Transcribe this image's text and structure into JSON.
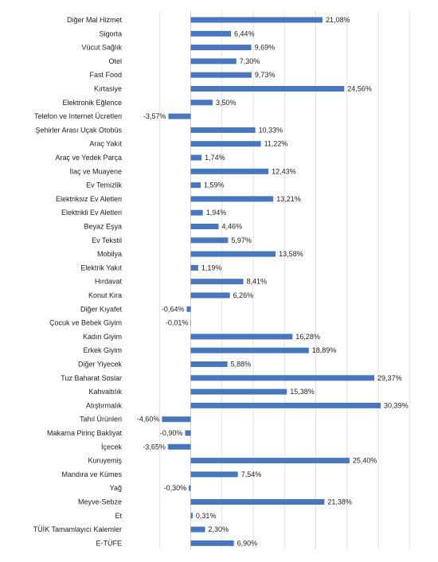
{
  "chart_data": {
    "type": "bar",
    "orientation": "horizontal",
    "title": "",
    "xlabel": "",
    "ylabel": "",
    "value_suffix": "%",
    "decimal_separator": ",",
    "grid": true,
    "bar_color": "#4a76bd",
    "xlim": [
      -5,
      35
    ],
    "categories": [
      "Diğer Mal Hizmet",
      "Sigorta",
      "Vücut Sağlık",
      "Otel",
      "Fast Food",
      "Kırtasiye",
      "Elektronik Eğlence",
      "Telefon ve Internet Ücretleri",
      "Şehirler Arası Uçak Otobüs",
      "Araç Yakıt",
      "Araç ve Yedek Parça",
      "İlaç ve Muayene",
      "Ev Temizlik",
      "Elektriksiz Ev Aletleri",
      "Elektrikli Ev Aletleri",
      "Beyaz Eşya",
      "Ev Tekstil",
      "Mobilya",
      "Elektrik Yakıt",
      "Hırdavat",
      "Konut Kira",
      "Diğer Kıyafet",
      "Çocuk ve Bebek Giyim",
      "Kadın Giyim",
      "Erkek Giyim",
      "Diğer Yiyecek",
      "Tuz Baharat Soslar",
      "Kahvaltılık",
      "Atıştırmalık",
      "Tahıl Ürünleri",
      "Makarna Pirinç Bakliyat",
      "İçecek",
      "Kuruyemiş",
      "Mandıra ve Kümes",
      "Yağ",
      "Meyve-Sebze",
      "Et",
      "TÜİK Tamamlayıcı Kalemler",
      "E-TÜFE"
    ],
    "values": [
      21.08,
      6.44,
      9.69,
      7.3,
      9.73,
      24.56,
      3.5,
      -3.57,
      10.33,
      11.22,
      1.74,
      12.43,
      1.59,
      13.21,
      1.94,
      4.46,
      5.97,
      13.58,
      1.19,
      8.41,
      6.26,
      -0.64,
      -0.01,
      16.28,
      18.89,
      5.88,
      29.37,
      15.38,
      30.39,
      -4.6,
      -0.9,
      -3.65,
      25.4,
      7.54,
      -0.3,
      21.38,
      0.31,
      2.3,
      6.9
    ],
    "value_labels": [
      "21,08%",
      "6,44%",
      "9,69%",
      "7,30%",
      "9,73%",
      "24,56%",
      "3,50%",
      "-3,57%",
      "10,33%",
      "11,22%",
      "1,74%",
      "12,43%",
      "1,59%",
      "13,21%",
      "1,94%",
      "4,46%",
      "5,97%",
      "13,58%",
      "1,19%",
      "8,41%",
      "6,26%",
      "-0,64%",
      "-0,01%",
      "16,28%",
      "18,89%",
      "5,88%",
      "29,37%",
      "15,38%",
      "30,39%",
      "-4,60%",
      "-0,90%",
      "-3,65%",
      "25,40%",
      "7,54%",
      "-0,30%",
      "21,38%",
      "0,31%",
      "2,30%",
      "6,90%"
    ]
  }
}
